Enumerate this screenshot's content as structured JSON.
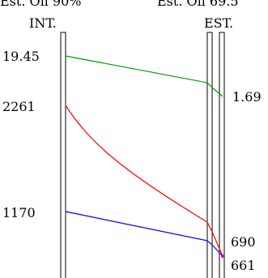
{
  "header": {
    "left_caption": "Est. Oil 90%",
    "right_caption": "Est. Oil 69.5",
    "int_label": "INT.",
    "est_label": "EST."
  },
  "series": [
    {
      "int_value": "19.45",
      "est_value": "1.69",
      "color": "#009900"
    },
    {
      "int_value": "2261",
      "est_value": "690",
      "color": "#ff0000"
    },
    {
      "int_value": "1170",
      "est_value": "661",
      "color": "#0000ff"
    }
  ]
}
